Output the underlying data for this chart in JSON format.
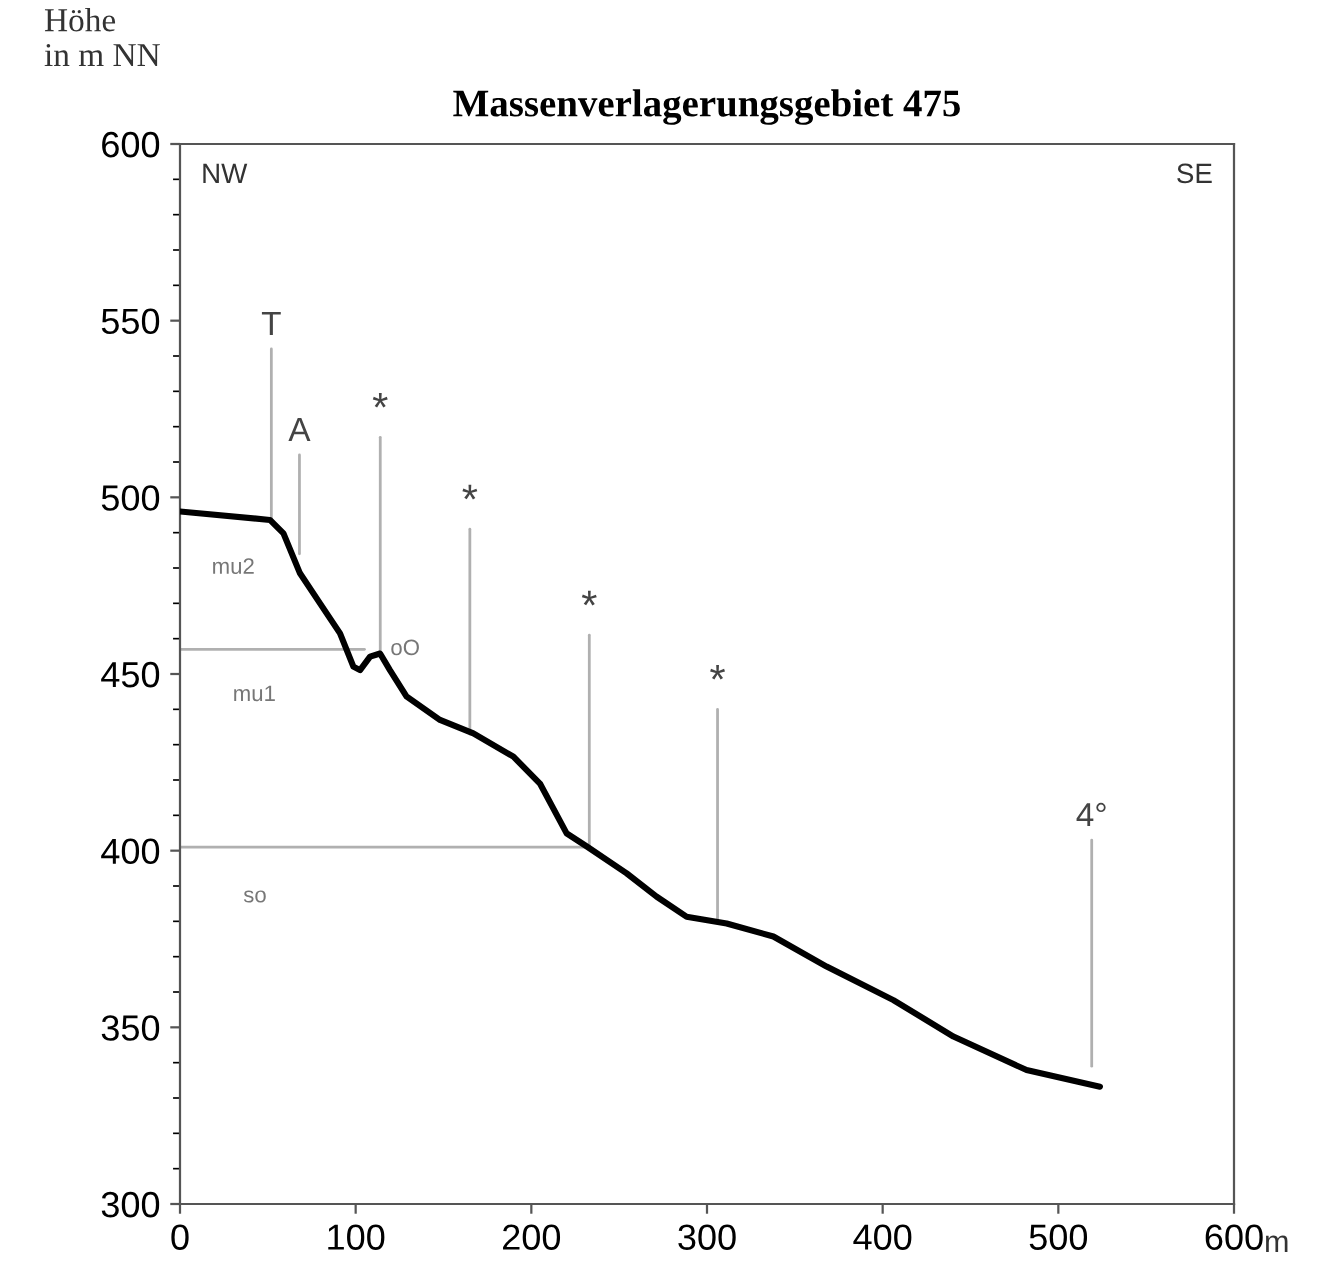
{
  "chart_data": {
    "type": "line",
    "title": "Massenverlagerungsgebiet 475",
    "ylabel": "Höhe\nin m NN",
    "xlabel": "m",
    "xlim": [
      0,
      600
    ],
    "ylim": [
      300,
      600
    ],
    "xticks": [
      0,
      100,
      200,
      300,
      400,
      500,
      600
    ],
    "yticks": [
      300,
      350,
      400,
      450,
      500,
      550,
      600
    ],
    "grid": false,
    "legend": false,
    "series": [
      {
        "color": "#000000",
        "x": [
          0,
          51.2,
          58.9,
          68.3,
          79.7,
          91.1,
          98.7,
          102.5,
          108.2,
          113.9,
          119.5,
          129.0,
          148.0,
          167.0,
          189.8,
          204.9,
          220.1,
          231.5,
          254.2,
          271.3,
          288.4,
          311.2,
          337.8,
          368.1,
          406.1,
          440.3,
          481.9,
          523.7
        ],
        "values": [
          496,
          493.6,
          489.8,
          478.5,
          470.0,
          461.5,
          452.1,
          451.1,
          454.9,
          455.8,
          451.1,
          443.6,
          437.0,
          433.2,
          426.6,
          419.0,
          404.9,
          401.2,
          393.6,
          387.0,
          381.3,
          379.4,
          375.7,
          367.2,
          357.7,
          347.4,
          337.9,
          333.2
        ]
      },
      {
        "color": "#b0b0b0",
        "x": [
          0,
          105
        ],
        "values": [
          457,
          457
        ]
      },
      {
        "color": "#b0b0b0",
        "x": [
          0,
          230
        ],
        "values": [
          401,
          401
        ]
      },
      {
        "color": "#b0b0b0",
        "x": [
          52,
          52
        ],
        "values": [
          542,
          493
        ]
      },
      {
        "color": "#b0b0b0",
        "x": [
          68,
          68
        ],
        "values": [
          512,
          484
        ]
      },
      {
        "color": "#b0b0b0",
        "x": [
          114,
          114
        ],
        "values": [
          517,
          456
        ]
      },
      {
        "color": "#b0b0b0",
        "x": [
          165,
          165
        ],
        "values": [
          491,
          433
        ]
      },
      {
        "color": "#b0b0b0",
        "x": [
          233,
          233
        ],
        "values": [
          461,
          401
        ]
      },
      {
        "color": "#b0b0b0",
        "x": [
          306,
          306
        ],
        "values": [
          440,
          380
        ]
      },
      {
        "color": "#b0b0b0",
        "x": [
          519,
          519
        ],
        "values": [
          403,
          339
        ]
      }
    ],
    "annotations": [
      {
        "text": "T",
        "x": 52,
        "y": 542
      },
      {
        "text": "A",
        "x": 68,
        "y": 512
      },
      {
        "text": "*",
        "x": 114,
        "y": 517
      },
      {
        "text": "*",
        "x": 165,
        "y": 491
      },
      {
        "text": "*",
        "x": 233,
        "y": 461
      },
      {
        "text": "*",
        "x": 306,
        "y": 440
      },
      {
        "text": "4°",
        "x": 519,
        "y": 403
      },
      {
        "text": "oO",
        "x": 115,
        "y": 457
      },
      "mu2",
      "mu1",
      "so",
      "NW",
      "SE"
    ]
  }
}
